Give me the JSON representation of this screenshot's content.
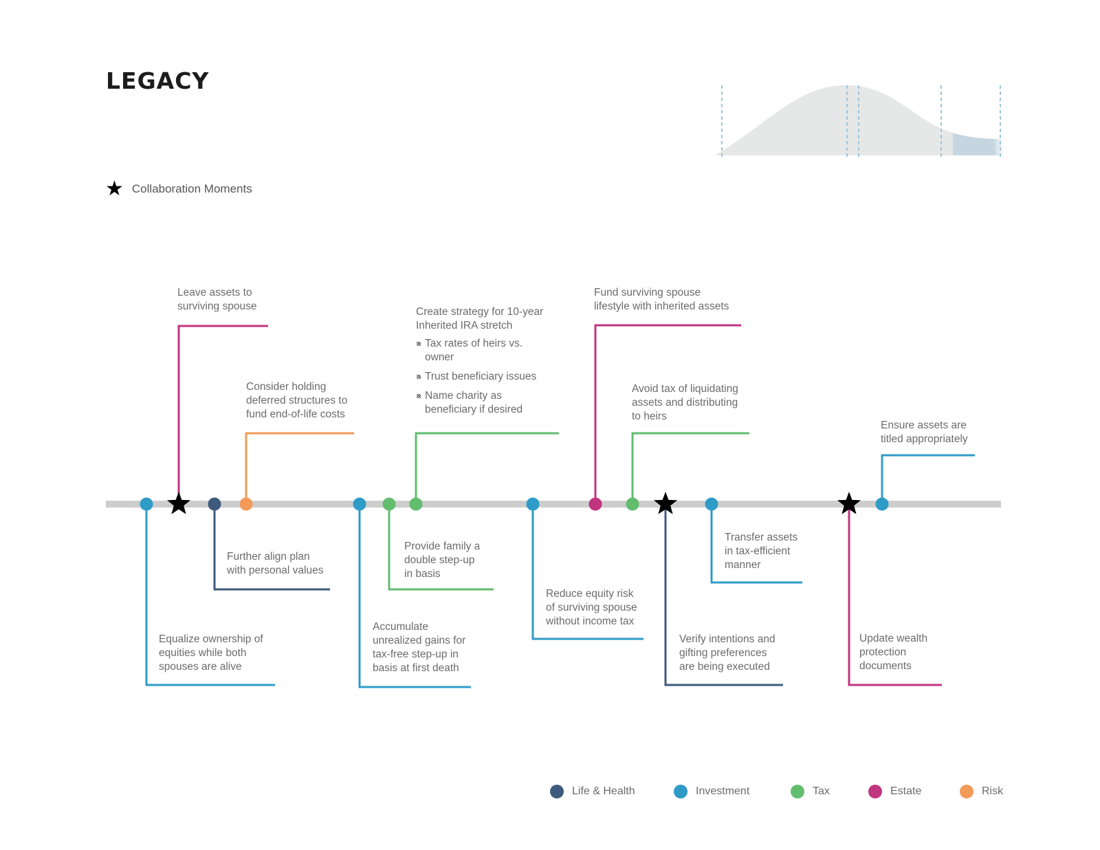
{
  "title": "LEGACY",
  "collaboration_legend": {
    "label": "Collaboration Moments",
    "icon": "star-icon"
  },
  "colors": {
    "life_health": "#3e5a7c",
    "investment": "#2f9bc7",
    "tax": "#62bd6f",
    "estate": "#c1347f",
    "risk": "#f29a58",
    "axis": "#cdcdcd",
    "star": "#000000"
  },
  "categories": [
    {
      "key": "life_health",
      "label": "Life & Health"
    },
    {
      "key": "investment",
      "label": "Investment"
    },
    {
      "key": "tax",
      "label": "Tax"
    },
    {
      "key": "estate",
      "label": "Estate"
    },
    {
      "key": "risk",
      "label": "Risk"
    }
  ],
  "events": [
    {
      "id": "e1",
      "category": "investment",
      "side": "below",
      "text": [
        "Equalize ownership of",
        "equities while both",
        "spouses are alive"
      ]
    },
    {
      "id": "e2",
      "category": "estate",
      "side": "above",
      "text": [
        "Leave assets to",
        "surviving spouse"
      ]
    },
    {
      "id": "e3",
      "category": "life_health",
      "side": "below",
      "text": [
        "Further align plan",
        "with personal values"
      ]
    },
    {
      "id": "e4",
      "category": "risk",
      "side": "above",
      "text": [
        "Consider holding",
        "deferred structures to",
        "fund end-of-life costs"
      ]
    },
    {
      "id": "e5",
      "category": "investment",
      "side": "below",
      "text": [
        "Accumulate",
        "unrealized gains for",
        "tax-free step-up in",
        "basis at first death"
      ]
    },
    {
      "id": "e6",
      "category": "tax",
      "side": "below",
      "text": [
        "Provide family a",
        "double step-up",
        "in basis"
      ]
    },
    {
      "id": "e7",
      "category": "tax",
      "side": "above",
      "text": [
        "Create strategy for 10-year",
        "Inherited IRA stretch"
      ],
      "bullets": [
        [
          "Tax rates of heirs vs.",
          "owner"
        ],
        [
          "Trust beneficiary issues"
        ],
        [
          "Name charity as",
          "beneficiary if desired"
        ]
      ]
    },
    {
      "id": "e8",
      "category": "investment",
      "side": "below",
      "text": [
        "Reduce equity risk",
        "of surviving spouse",
        "without income tax"
      ]
    },
    {
      "id": "e9",
      "category": "estate",
      "side": "above",
      "text": [
        "Fund surviving spouse",
        "lifestyle with inherited assets"
      ]
    },
    {
      "id": "e10",
      "category": "tax",
      "side": "above",
      "text": [
        "Avoid tax of liquidating",
        "assets and distributing",
        "to heirs"
      ]
    },
    {
      "id": "e11",
      "category": "life_health",
      "side": "below",
      "star": true,
      "text": [
        "Verify intentions and",
        "gifting preferences",
        "are being executed"
      ]
    },
    {
      "id": "e12",
      "category": "investment",
      "side": "below",
      "text": [
        "Transfer assets",
        "in tax-efficient",
        "manner"
      ]
    },
    {
      "id": "e13",
      "category": "estate",
      "side": "below",
      "star": true,
      "text": [
        "Update wealth",
        "protection",
        "documents"
      ]
    },
    {
      "id": "e14",
      "category": "investment",
      "side": "above",
      "text": [
        "Ensure assets are",
        "titled appropriately"
      ]
    }
  ]
}
